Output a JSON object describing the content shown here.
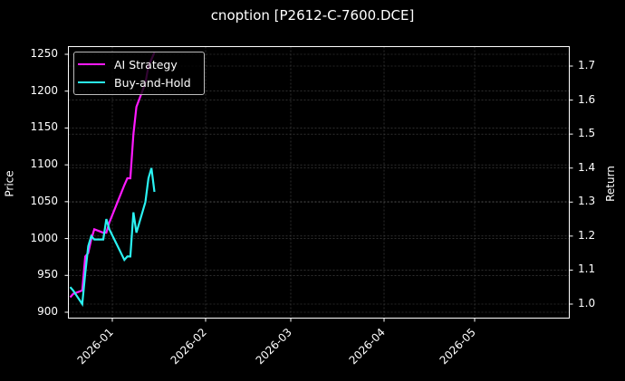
{
  "title": "cnoption [P2612-C-7600.DCE]",
  "colors": {
    "ai_strategy": "#ff1aff",
    "buy_and_hold": "#2af2f2",
    "background": "#000000",
    "grid": "#555555",
    "axes": "#ffffff"
  },
  "legend": [
    {
      "label": "AI Strategy",
      "color": "#ff1aff"
    },
    {
      "label": "Buy-and-Hold",
      "color": "#2af2f2"
    }
  ],
  "chart_data": {
    "type": "line",
    "title": "cnoption [P2612-C-7600.DCE]",
    "xlabel": "",
    "ylabel": "Price",
    "ylabel_right": "Return",
    "x_ticks": [
      "2026-01",
      "2026-02",
      "2026-03",
      "2026-04",
      "2026-05"
    ],
    "y_ticks_left": [
      "900",
      "950",
      "1000",
      "1050",
      "1100",
      "1150",
      "1200",
      "1250"
    ],
    "y_ticks_right": [
      "1.0",
      "1.1",
      "1.2",
      "1.3",
      "1.4",
      "1.5",
      "1.6",
      "1.7"
    ],
    "ylim_left": [
      890,
      1260
    ],
    "ylim_right": [
      0.96,
      1.75
    ],
    "grid": true,
    "legend_position": "upper left",
    "x": [
      "2025-12-18",
      "2025-12-19",
      "2025-12-22",
      "2025-12-23",
      "2025-12-24",
      "2025-12-25",
      "2025-12-26",
      "2025-12-29",
      "2025-12-30",
      "2025-12-31",
      "2026-01-05",
      "2026-01-06",
      "2026-01-07",
      "2026-01-08",
      "2026-01-09",
      "2026-01-12",
      "2026-01-13",
      "2026-01-14",
      "2026-01-15"
    ],
    "series": [
      {
        "name": "AI Strategy",
        "axis": "right",
        "values": [
          1.02,
          1.03,
          1.04,
          1.14,
          1.15,
          1.19,
          1.22,
          1.21,
          1.21,
          1.24,
          1.35,
          1.37,
          1.37,
          1.5,
          1.58,
          1.65,
          1.7,
          1.72,
          1.74
        ]
      },
      {
        "name": "Buy-and-Hold",
        "axis": "right",
        "values": [
          1.05,
          1.04,
          1.0,
          1.09,
          1.17,
          1.2,
          1.19,
          1.19,
          1.25,
          1.22,
          1.13,
          1.14,
          1.14,
          1.27,
          1.21,
          1.3,
          1.37,
          1.4,
          1.33
        ]
      }
    ]
  }
}
